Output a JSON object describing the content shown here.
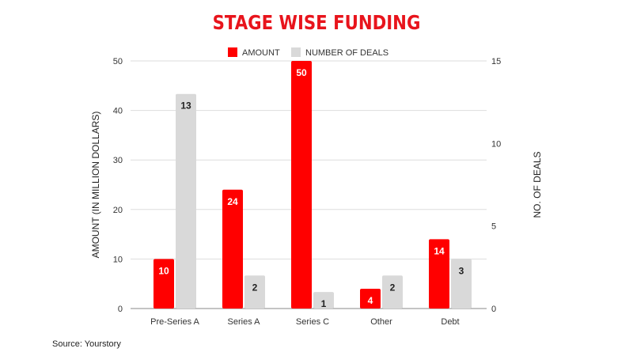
{
  "chart_data": {
    "type": "bar",
    "title": "STAGE WISE FUNDING",
    "categories": [
      "Pre-Series A",
      "Series A",
      "Series C",
      "Other",
      "Debt"
    ],
    "series": [
      {
        "name": "AMOUNT",
        "axis": "left",
        "color": "#ff0000",
        "values": [
          10,
          24,
          50,
          4,
          14
        ]
      },
      {
        "name": "NUMBER OF DEALS",
        "axis": "right",
        "color": "#d9d9d9",
        "values": [
          13,
          2,
          1,
          2,
          3
        ]
      }
    ],
    "ylabel": "AMOUNT (IN MILLION DOLLARS)",
    "y2label": "NO. OF DEALS",
    "ylim": [
      0,
      50
    ],
    "y2lim": [
      0,
      15
    ],
    "yticks": [
      0,
      10,
      20,
      30,
      40,
      50
    ],
    "y2ticks": [
      0,
      5,
      10,
      15
    ],
    "grid": true,
    "legend": "top"
  },
  "source": "Source: Yourstory"
}
